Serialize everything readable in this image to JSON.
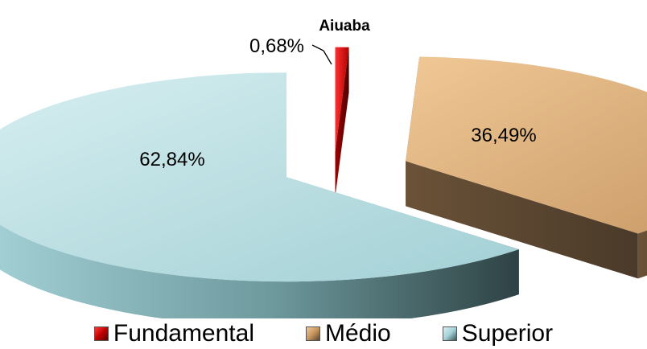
{
  "chart_data": {
    "type": "pie",
    "title": "Aiuaba",
    "categories": [
      "Fundamental",
      "Médio",
      "Superior"
    ],
    "values": [
      0.68,
      36.49,
      62.84
    ],
    "labels": [
      "0,68%",
      "36,49%",
      "62,84%"
    ],
    "legend_position": "bottom",
    "exploded": true,
    "style": "3d",
    "colors": {
      "Fundamental": "#c00000",
      "Médio": "#c8965e",
      "Superior": "#a5d3d8"
    }
  },
  "legend": {
    "items": [
      "Fundamental",
      "Médio",
      "Superior"
    ]
  }
}
